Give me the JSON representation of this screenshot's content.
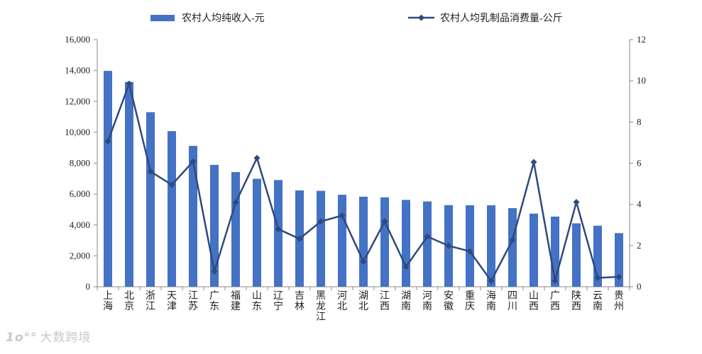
{
  "chart_data": {
    "type": "bar+line",
    "categories": [
      [
        "上",
        "海"
      ],
      [
        "北",
        "京"
      ],
      [
        "浙",
        "江"
      ],
      [
        "天",
        "津"
      ],
      [
        "江",
        "苏"
      ],
      [
        "广",
        "东"
      ],
      [
        "福",
        "建"
      ],
      [
        "山",
        "东"
      ],
      [
        "辽",
        "宁"
      ],
      [
        "吉",
        "林"
      ],
      [
        "黑",
        "龙",
        "江"
      ],
      [
        "河",
        "北"
      ],
      [
        "湖",
        "北"
      ],
      [
        "江",
        "西"
      ],
      [
        "湖",
        "南"
      ],
      [
        "河",
        "南"
      ],
      [
        "安",
        "徽"
      ],
      [
        "重",
        "庆"
      ],
      [
        "海",
        "南"
      ],
      [
        "四",
        "川"
      ],
      [
        "山",
        "西"
      ],
      [
        "广",
        "西"
      ],
      [
        "陕",
        "西"
      ],
      [
        "云",
        "南"
      ],
      [
        "贵",
        "州"
      ]
    ],
    "series": [
      {
        "name": "农村人均纯收入-元",
        "type": "bar",
        "axis": "left",
        "color": "#4472C4",
        "values": [
          13978,
          13262,
          11303,
          10075,
          9118,
          7890,
          7427,
          6990,
          6908,
          6237,
          6211,
          5958,
          5832,
          5789,
          5622,
          5524,
          5285,
          5277,
          5275,
          5087,
          4736,
          4543,
          4105,
          3952,
          3472
        ]
      },
      {
        "name": "农村人均乳制品消费量-公斤",
        "type": "line",
        "axis": "right",
        "color": "#2E4A7D",
        "values": [
          7.06,
          9.86,
          5.6,
          4.95,
          6.08,
          0.74,
          4.09,
          6.25,
          2.8,
          2.33,
          3.17,
          3.46,
          1.22,
          3.17,
          0.97,
          2.44,
          1.99,
          1.72,
          0.28,
          2.27,
          6.05,
          0.29,
          4.11,
          0.43,
          0.48
        ]
      }
    ],
    "y_left": {
      "min": 0,
      "max": 16000,
      "ticks": [
        "0",
        "2,000",
        "4,000",
        "6,000",
        "8,000",
        "10,000",
        "12,000",
        "14,000",
        "16,000"
      ]
    },
    "y_right": {
      "min": 0,
      "max": 12,
      "ticks": [
        "0",
        "2",
        "4",
        "6",
        "8",
        "10",
        "12"
      ]
    },
    "legend_placement": "top",
    "grid": false
  },
  "watermark": {
    "logo": "1o°°",
    "text": "大数跨境"
  }
}
